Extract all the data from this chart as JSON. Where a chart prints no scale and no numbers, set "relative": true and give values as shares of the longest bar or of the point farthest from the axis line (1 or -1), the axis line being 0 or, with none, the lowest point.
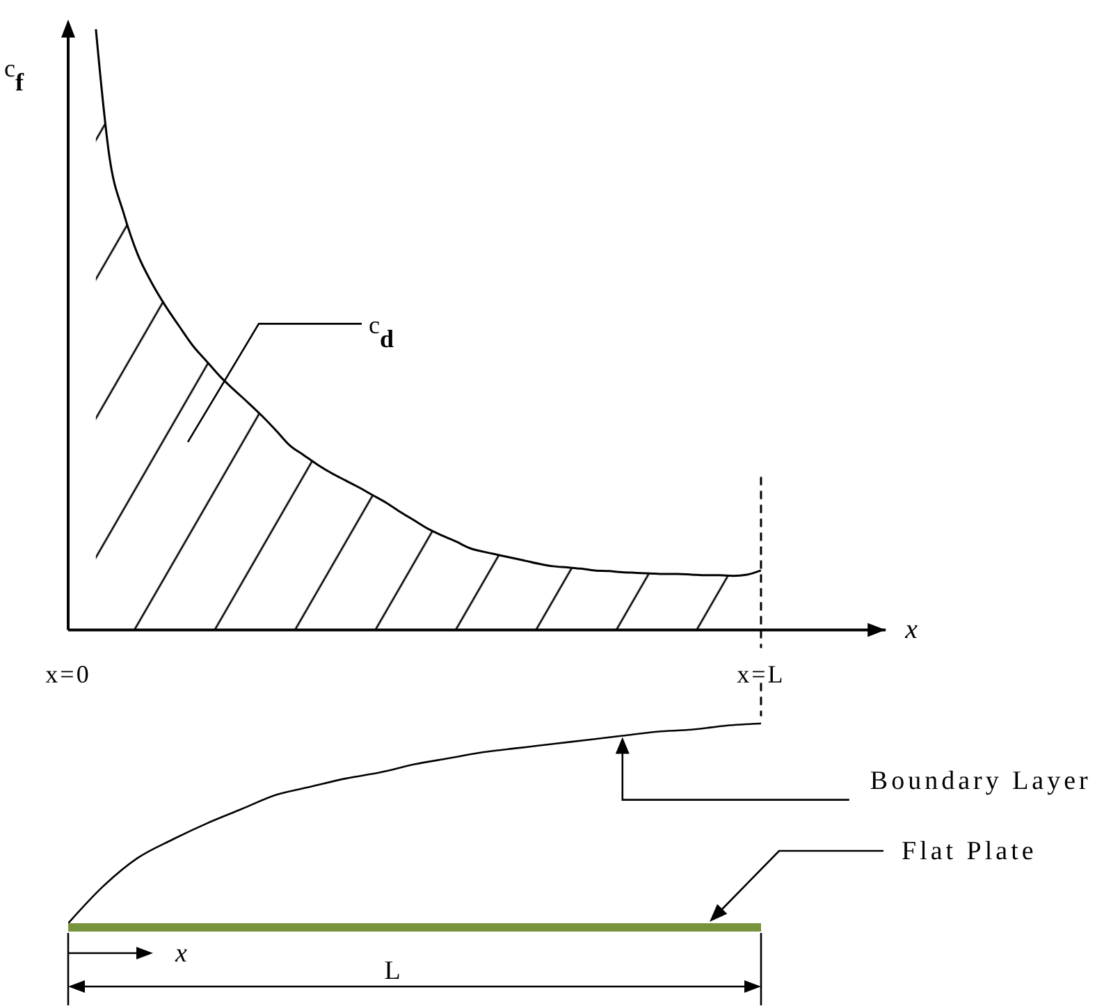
{
  "chart_data": [
    {
      "type": "area",
      "ylabel": "c$_{f}$",
      "xlabel": "x",
      "relative": true,
      "color": "#000000",
      "categories": [
        "x=0",
        null,
        null,
        null,
        null,
        null,
        null,
        null,
        null,
        null,
        null,
        null,
        null,
        null,
        null,
        null,
        null,
        null,
        null,
        null,
        null,
        null,
        null,
        null,
        null,
        null,
        null,
        null,
        null,
        null,
        null,
        null,
        null,
        null,
        null,
        null,
        null,
        null,
        null,
        null,
        null,
        null,
        null,
        null,
        null,
        null,
        null,
        null,
        null,
        null,
        "x=L",
        null,
        null,
        null,
        null,
        null,
        null,
        null,
        null,
        null
      ],
      "values": [
        null,
        null,
        1,
        0.784,
        0.694,
        0.626,
        0.579,
        0.54,
        0.506,
        0.473,
        0.447,
        0.421,
        0.399,
        0.378,
        0.356,
        0.332,
        0.307,
        0.291,
        0.275,
        0.261,
        0.249,
        0.237,
        0.224,
        0.211,
        0.196,
        0.182,
        0.168,
        0.157,
        0.147,
        0.136,
        0.13,
        0.125,
        0.12,
        0.115,
        0.11,
        0.106,
        0.104,
        0.102,
        0.099,
        0.098,
        0.096,
        0.095,
        0.094,
        0.093,
        0.093,
        0.092,
        0.091,
        0.091,
        0.09,
        0.092,
        0.099,
        null,
        null,
        null,
        null,
        null,
        null,
        null,
        null,
        null
      ],
      "ref_lines": [
        {
          "axis": "x",
          "value": "x=L",
          "line_style": "dashed",
          "color": "#000000"
        }
      ],
      "annotations": [
        "c$_{d}$"
      ]
    },
    {
      "type": "line",
      "relative": true,
      "tick_labels": false,
      "categories": [
        null,
        null,
        null,
        null,
        null,
        null,
        null,
        null,
        null,
        null,
        null,
        null,
        null,
        null,
        null,
        null,
        null,
        null,
        null,
        null,
        null
      ],
      "series": [
        {
          "name": "Boundary Layer",
          "color": "#000000",
          "values": [
            0.02,
            0.2,
            0.34,
            0.43,
            0.51,
            0.58,
            0.65,
            0.69,
            0.73,
            0.76,
            0.8,
            0.83,
            0.86,
            0.88,
            0.9,
            0.92,
            0.94,
            0.96,
            0.97,
            0.99,
            1
          ]
        }
      ],
      "ref_lines": [
        {
          "axis": "y",
          "value": 0,
          "label": "Flat Plate",
          "color": "#77933c"
        }
      ],
      "annotations": [
        "x",
        "L"
      ]
    }
  ]
}
